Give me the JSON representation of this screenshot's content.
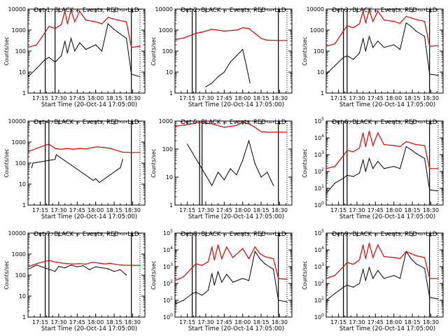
{
  "colors": {
    "events": "#000000",
    "lld": "#dd0000",
    "axes": "#000000",
    "background": "#ffffff"
  },
  "x_ticks": [
    "17:15",
    "17:30",
    "17:45",
    "18:00",
    "18:15",
    "18:30"
  ],
  "x_label": "Start Time (20-Oct-14 17:05:00)",
  "y_label": "Counts/sec",
  "chart_data": [
    {
      "type": "line",
      "panel": "1",
      "title": "Det 1: BLACK = Events, RED = LLD",
      "xlabel": "Start Time (20-Oct-14 17:05:00)",
      "ylabel": "Counts/sec",
      "xlim": [
        "17:05",
        "18:40"
      ],
      "ylim": [
        1,
        10000
      ],
      "yscale": "log",
      "ytick_style": "plain",
      "vlines_solid": [
        "17:19",
        "17:27",
        "18:29"
      ],
      "vlines_dotted": [
        "18:36"
      ],
      "series": [
        {
          "name": "BLACK = Events",
          "x": [
            "17:05",
            "17:12",
            "17:19",
            "17:22",
            "17:27",
            "17:32",
            "17:35",
            "17:37",
            "17:40",
            "17:43",
            "17:47",
            "17:52",
            "18:00",
            "18:05",
            "18:10",
            "18:14",
            "18:18",
            "18:25",
            "18:29",
            "18:36"
          ],
          "y": [
            6,
            15,
            40,
            50,
            30,
            60,
            300,
            80,
            400,
            100,
            250,
            120,
            200,
            100,
            2000,
            1200,
            800,
            400,
            8,
            6
          ]
        },
        {
          "name": "RED = LLD",
          "x": [
            "17:05",
            "17:12",
            "17:19",
            "17:22",
            "17:27",
            "17:32",
            "17:35",
            "17:37",
            "17:40",
            "17:43",
            "17:47",
            "17:52",
            "18:00",
            "18:05",
            "18:10",
            "18:14",
            "18:18",
            "18:25",
            "18:29",
            "18:36"
          ],
          "y": [
            150,
            200,
            800,
            1500,
            1200,
            1800,
            8000,
            2000,
            9000,
            2500,
            8000,
            3000,
            2500,
            2000,
            4000,
            3500,
            3000,
            2500,
            150,
            170
          ]
        }
      ]
    },
    {
      "type": "line",
      "panel": "2",
      "title": "Det 2: BLACK = Events, RED = LLD",
      "xlabel": "Start Time (20-Oct-14 17:05:00)",
      "ylabel": "Counts/sec",
      "xlim": [
        "17:05",
        "18:40"
      ],
      "ylim": [
        1,
        10000
      ],
      "yscale": "log",
      "ytick_style": "plain",
      "vlines_solid": [
        "17:19",
        "17:22",
        "18:29"
      ],
      "vlines_dotted": [
        "18:36"
      ],
      "series": [
        {
          "name": "BLACK = Events",
          "x": [
            "17:30",
            "17:35",
            "17:40",
            "17:45",
            "17:50",
            "17:55",
            "18:00",
            "18:03",
            "18:06"
          ],
          "y": [
            2,
            3,
            6,
            10,
            30,
            60,
            120,
            20,
            3
          ]
        },
        {
          "name": "RED = LLD",
          "x": [
            "17:05",
            "17:12",
            "17:19",
            "17:22",
            "17:27",
            "17:35",
            "17:45",
            "17:55",
            "18:00",
            "18:05",
            "18:10",
            "18:15",
            "18:20",
            "18:29",
            "18:36"
          ],
          "y": [
            350,
            420,
            600,
            700,
            800,
            1100,
            900,
            1000,
            1300,
            1200,
            700,
            400,
            330,
            320,
            320
          ]
        }
      ]
    },
    {
      "type": "line",
      "panel": "3",
      "title": "Det 3: BLACK = Events, RED = LLD",
      "xlabel": "Start Time (20-Oct-14 17:05:00)",
      "ylabel": "Counts/sec",
      "xlim": [
        "17:05",
        "18:40"
      ],
      "ylim": [
        1,
        10000
      ],
      "yscale": "log",
      "ytick_style": "plain",
      "vlines_solid": [
        "17:19",
        "17:22",
        "18:29"
      ],
      "vlines_dotted": [
        "18:36"
      ],
      "series": [
        {
          "name": "BLACK = Events",
          "x": [
            "17:05",
            "17:12",
            "17:19",
            "17:22",
            "17:27",
            "17:32",
            "17:35",
            "17:37",
            "17:40",
            "17:43",
            "17:47",
            "17:52",
            "18:00",
            "18:05",
            "18:10",
            "18:14",
            "18:18",
            "18:25",
            "18:29",
            "18:36"
          ],
          "y": [
            8,
            20,
            50,
            60,
            40,
            80,
            400,
            100,
            500,
            150,
            300,
            150,
            200,
            120,
            2200,
            1500,
            900,
            500,
            8,
            7
          ]
        },
        {
          "name": "RED = LLD",
          "x": [
            "17:05",
            "17:12",
            "17:19",
            "17:22",
            "17:27",
            "17:32",
            "17:35",
            "17:37",
            "17:40",
            "17:43",
            "17:47",
            "17:52",
            "18:00",
            "18:05",
            "18:10",
            "18:14",
            "18:18",
            "18:25",
            "18:29",
            "18:36"
          ],
          "y": [
            170,
            220,
            900,
            1600,
            1300,
            2000,
            8000,
            2200,
            9000,
            2600,
            8000,
            3000,
            2600,
            2100,
            4500,
            3800,
            3200,
            2600,
            170,
            180
          ]
        }
      ]
    },
    {
      "type": "line",
      "panel": "4",
      "title": "Det 4: BLACK = Events, RED = LLD",
      "xlabel": "Start Time (20-Oct-14 17:05:00)",
      "ylabel": "Counts/sec",
      "xlim": [
        "17:05",
        "18:40"
      ],
      "ylim": [
        1,
        10000
      ],
      "yscale": "log",
      "ytick_style": "plain",
      "vlines_solid": [
        "17:19",
        "17:22",
        "18:29"
      ],
      "vlines_dotted": [
        "18:36"
      ],
      "series": [
        {
          "name": "BLACK = Events",
          "x": [
            "17:08",
            "17:09",
            "17:27",
            "17:28",
            "17:55",
            "17:58",
            "18:00",
            "18:03",
            "18:20",
            "18:22"
          ],
          "y": [
            60,
            100,
            150,
            250,
            20,
            15,
            18,
            12,
            60,
            150
          ]
        },
        {
          "name": "RED = LLD",
          "x": [
            "17:05",
            "17:12",
            "17:19",
            "17:22",
            "17:27",
            "17:32",
            "17:37",
            "17:42",
            "17:47",
            "17:52",
            "17:57",
            "18:02",
            "18:07",
            "18:12",
            "18:17",
            "18:22",
            "18:29",
            "18:36"
          ],
          "y": [
            350,
            500,
            700,
            800,
            500,
            450,
            500,
            450,
            500,
            470,
            550,
            600,
            550,
            500,
            400,
            330,
            320,
            320
          ]
        }
      ]
    },
    {
      "type": "line",
      "panel": "5",
      "title": "Det 5: BLACK = Events, RED = LLD",
      "xlabel": "Start Time (20-Oct-14 17:05:00)",
      "ylabel": "Counts/sec",
      "xlim": [
        "17:05",
        "18:40"
      ],
      "ylim": [
        1,
        1000
      ],
      "yscale": "log",
      "ytick_style": "plain",
      "vlines_solid": [
        "17:25",
        "17:27",
        "18:29"
      ],
      "vlines_dotted": [
        "18:36"
      ],
      "series": [
        {
          "name": "BLACK = Events",
          "x": [
            "17:15",
            "17:35",
            "17:40",
            "17:45",
            "17:50",
            "17:55",
            "18:00",
            "18:05",
            "18:10",
            "18:15",
            "18:20",
            "18:25"
          ],
          "y": [
            150,
            5,
            15,
            8,
            20,
            12,
            40,
            200,
            30,
            10,
            15,
            5
          ]
        },
        {
          "name": "RED = LLD",
          "x": [
            "17:05",
            "17:12",
            "17:19",
            "17:22",
            "17:27",
            "17:35",
            "17:45",
            "17:55",
            "18:00",
            "18:05",
            "18:10",
            "18:15",
            "18:20",
            "18:29",
            "18:36"
          ],
          "y": [
            650,
            720,
            800,
            900,
            900,
            800,
            600,
            700,
            900,
            800,
            600,
            420,
            400,
            400,
            400
          ]
        }
      ]
    },
    {
      "type": "line",
      "panel": "6",
      "title": "Det 6: BLACK = Events, RED = LLD",
      "xlabel": "Start Time (20-Oct-14 17:05:00)",
      "ylabel": "Counts/sec",
      "xlim": [
        "17:05",
        "18:40"
      ],
      "ylim": [
        1,
        100000
      ],
      "yscale": "log",
      "ytick_style": "power",
      "vlines_solid": [
        "17:19",
        "17:22",
        "18:29"
      ],
      "vlines_dotted": [
        "18:36"
      ],
      "series": [
        {
          "name": "BLACK = Events",
          "x": [
            "17:05",
            "17:12",
            "17:19",
            "17:22",
            "17:27",
            "17:32",
            "17:35",
            "17:37",
            "17:40",
            "17:43",
            "17:47",
            "17:52",
            "18:00",
            "18:05",
            "18:10",
            "18:14",
            "18:18",
            "18:25",
            "18:29",
            "18:36"
          ],
          "y": [
            5,
            20,
            40,
            60,
            50,
            80,
            500,
            100,
            600,
            150,
            400,
            150,
            200,
            150,
            3000,
            2000,
            1200,
            600,
            8,
            7
          ]
        },
        {
          "name": "RED = LLD",
          "x": [
            "17:05",
            "17:12",
            "17:19",
            "17:22",
            "17:27",
            "17:32",
            "17:35",
            "17:37",
            "17:40",
            "17:43",
            "17:47",
            "17:52",
            "18:00",
            "18:05",
            "18:10",
            "18:14",
            "18:18",
            "18:25",
            "18:29",
            "18:36"
          ],
          "y": [
            150,
            200,
            900,
            1800,
            1500,
            2500,
            20000,
            3000,
            25000,
            3500,
            20000,
            4000,
            3500,
            3000,
            6000,
            5000,
            4000,
            3500,
            150,
            150
          ]
        }
      ]
    },
    {
      "type": "line",
      "panel": "7",
      "title": "Det 7: BLACK = Events, RED = LLD",
      "xlabel": "Start Time (20-Oct-14 17:05:00)",
      "ylabel": "Counts/sec",
      "xlim": [
        "17:05",
        "18:40"
      ],
      "ylim": [
        1,
        10000
      ],
      "yscale": "log",
      "ytick_style": "plain",
      "vlines_solid": [
        "17:19",
        "17:22",
        "18:29"
      ],
      "vlines_dotted": [
        "18:36"
      ],
      "series": [
        {
          "name": "BLACK = Events",
          "x": [
            "17:06",
            "17:09",
            "17:12",
            "17:27",
            "17:30",
            "17:35",
            "17:40",
            "17:45",
            "17:50",
            "17:55",
            "18:00",
            "18:10",
            "18:15",
            "18:20",
            "18:25"
          ],
          "y": [
            200,
            250,
            300,
            150,
            260,
            220,
            300,
            250,
            280,
            180,
            250,
            200,
            150,
            180,
            100
          ]
        },
        {
          "name": "RED = LLD",
          "x": [
            "17:05",
            "17:12",
            "17:19",
            "17:22",
            "17:27",
            "17:32",
            "17:37",
            "17:42",
            "17:47",
            "17:52",
            "17:57",
            "18:02",
            "18:07",
            "18:12",
            "18:17",
            "18:22",
            "18:29",
            "18:36"
          ],
          "y": [
            250,
            350,
            450,
            500,
            420,
            380,
            350,
            340,
            350,
            330,
            400,
            380,
            340,
            360,
            320,
            300,
            290,
            290
          ]
        }
      ]
    },
    {
      "type": "line",
      "panel": "8",
      "title": "Det 8: BLACK = Events, RED = LLD",
      "xlabel": "Start Time (20-Oct-14 17:05:00)",
      "ylabel": "Counts/sec",
      "xlim": [
        "17:05",
        "18:40"
      ],
      "ylim": [
        1,
        100000
      ],
      "yscale": "log",
      "ytick_style": "power",
      "vlines_solid": [
        "17:19",
        "17:22",
        "18:29"
      ],
      "vlines_dotted": [
        "18:36"
      ],
      "series": [
        {
          "name": "BLACK = Events",
          "x": [
            "17:05",
            "17:12",
            "17:19",
            "17:22",
            "17:27",
            "17:32",
            "17:35",
            "17:37",
            "17:40",
            "17:43",
            "17:47",
            "17:52",
            "18:00",
            "18:05",
            "18:10",
            "18:14",
            "18:18",
            "18:25",
            "18:29",
            "18:36"
          ],
          "y": [
            6,
            10,
            25,
            30,
            20,
            40,
            400,
            80,
            500,
            120,
            350,
            120,
            200,
            150,
            8000,
            3000,
            1500,
            700,
            10,
            8
          ]
        },
        {
          "name": "RED = LLD",
          "x": [
            "17:05",
            "17:12",
            "17:19",
            "17:22",
            "17:27",
            "17:32",
            "17:35",
            "17:37",
            "17:40",
            "17:43",
            "17:47",
            "17:52",
            "18:00",
            "18:05",
            "18:10",
            "18:14",
            "18:18",
            "18:25",
            "18:29",
            "18:36"
          ],
          "y": [
            150,
            250,
            900,
            1500,
            1200,
            2000,
            15000,
            2500,
            20000,
            3000,
            15000,
            3500,
            12000,
            3000,
            15000,
            6000,
            4000,
            3000,
            200,
            180
          ]
        }
      ]
    },
    {
      "type": "line",
      "panel": "9",
      "title": "Det 9: BLACK = Events, RED = LLD",
      "xlabel": "Start Time (20-Oct-14 17:05:00)",
      "ylabel": "Counts/sec",
      "xlim": [
        "17:05",
        "18:40"
      ],
      "ylim": [
        1,
        100000
      ],
      "yscale": "log",
      "ytick_style": "power",
      "vlines_solid": [
        "17:19",
        "17:22",
        "18:29"
      ],
      "vlines_dotted": [
        "18:36"
      ],
      "series": [
        {
          "name": "BLACK = Events",
          "x": [
            "17:05",
            "17:12",
            "17:19",
            "17:22",
            "17:27",
            "17:32",
            "17:35",
            "17:37",
            "17:40",
            "17:43",
            "17:47",
            "17:52",
            "18:00",
            "18:05",
            "18:10",
            "18:14",
            "18:18",
            "18:25",
            "18:29",
            "18:36"
          ],
          "y": [
            10,
            25,
            60,
            80,
            60,
            100,
            700,
            150,
            900,
            200,
            600,
            200,
            300,
            200,
            8000,
            3000,
            1500,
            800,
            15,
            12
          ]
        },
        {
          "name": "RED = LLD",
          "x": [
            "17:05",
            "17:12",
            "17:19",
            "17:22",
            "17:27",
            "17:32",
            "17:35",
            "17:37",
            "17:40",
            "17:43",
            "17:47",
            "17:52",
            "18:00",
            "18:05",
            "18:10",
            "18:14",
            "18:18",
            "18:25",
            "18:29",
            "18:36"
          ],
          "y": [
            200,
            300,
            1000,
            1800,
            1400,
            2500,
            20000,
            3000,
            25000,
            3500,
            20000,
            4000,
            3500,
            3000,
            8000,
            6000,
            4500,
            3500,
            200,
            200
          ]
        }
      ]
    }
  ]
}
